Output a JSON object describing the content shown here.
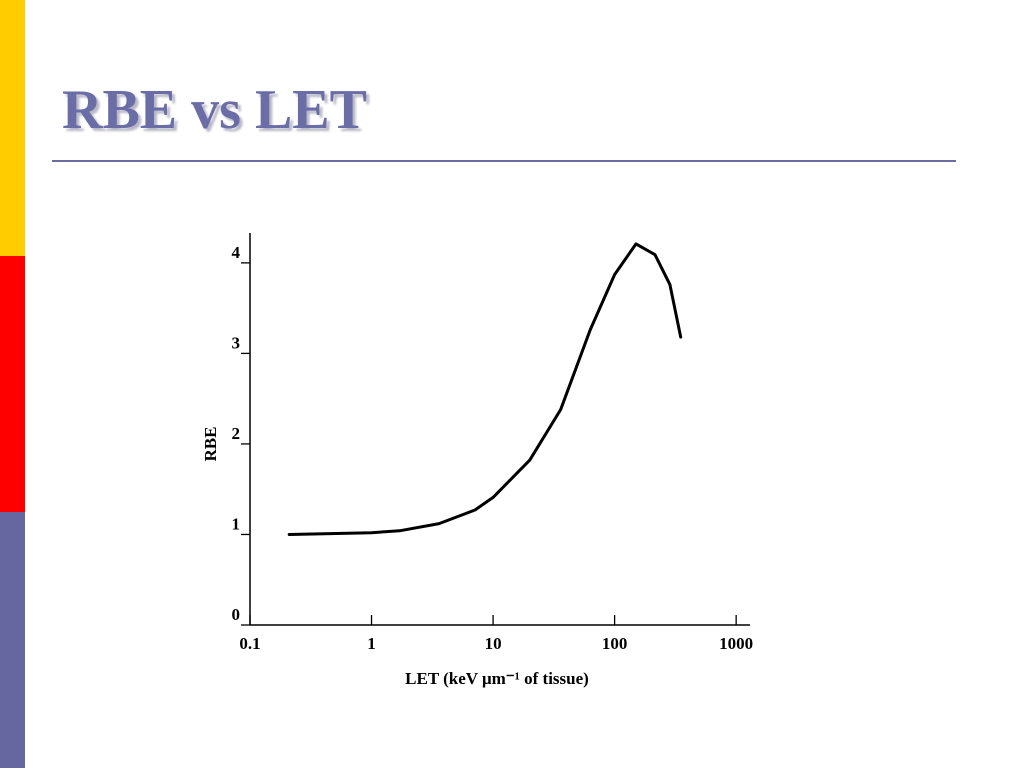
{
  "chart_data": {
    "type": "line",
    "title": "RBE vs LET",
    "x_label": "LET (keV μm⁻¹ of tissue)",
    "y_label": "RBE",
    "xscale": "log",
    "xlim": [
      0.1,
      1300
    ],
    "ylim": [
      0,
      4.33
    ],
    "xticks": [
      0.1,
      1,
      10,
      100,
      1000
    ],
    "yticks": [
      0,
      1,
      2,
      3,
      4
    ],
    "color": "#000000",
    "x": [
      0.21,
      1,
      1.7,
      3.6,
      7.1,
      10,
      20,
      36,
      63,
      100,
      150,
      215,
      285,
      350
    ],
    "values": [
      1.0,
      1.02,
      1.04,
      1.12,
      1.27,
      1.41,
      1.82,
      2.38,
      3.26,
      3.87,
      4.21,
      4.09,
      3.76,
      3.18
    ]
  }
}
